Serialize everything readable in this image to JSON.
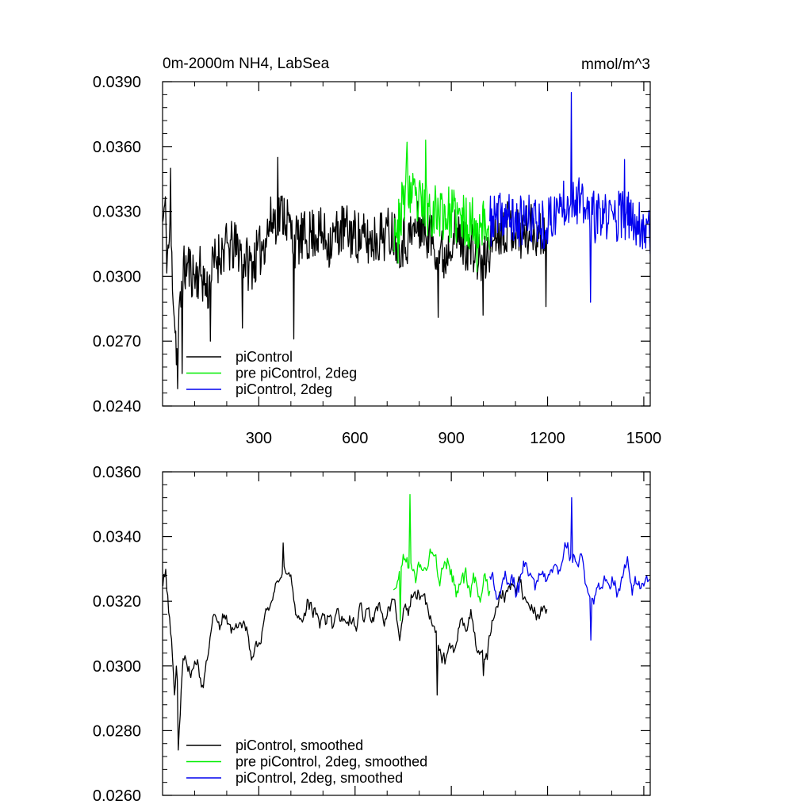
{
  "chart_data": [
    {
      "type": "line",
      "title": "0m-2000m NH4, LabSea",
      "units": "mmol/m^3",
      "xlim": [
        0,
        1520
      ],
      "ylim": [
        0.024,
        0.039
      ],
      "x_ticks": [
        300,
        600,
        900,
        1200,
        1500
      ],
      "x_tick_labels": [
        "300",
        "600",
        "900",
        "1200",
        "1500"
      ],
      "y_ticks": [
        0.024,
        0.027,
        0.03,
        0.033,
        0.036,
        0.039
      ],
      "y_tick_labels": [
        "0.0240",
        "0.0270",
        "0.0300",
        "0.0330",
        "0.0360",
        "0.0390"
      ],
      "legend_position": "bottom-left",
      "series": [
        {
          "name": "piControl",
          "color": "#000000",
          "x_start": 1,
          "x_end": 1200,
          "anchors": [
            [
              1,
              0.0325
            ],
            [
              8,
              0.0332
            ],
            [
              14,
              0.0308
            ],
            [
              22,
              0.0318
            ],
            [
              30,
              0.0305
            ],
            [
              38,
              0.0279
            ],
            [
              46,
              0.0262
            ],
            [
              54,
              0.0284
            ],
            [
              62,
              0.0301
            ],
            [
              80,
              0.0305
            ],
            [
              100,
              0.03
            ],
            [
              120,
              0.0302
            ],
            [
              140,
              0.0293
            ],
            [
              160,
              0.0306
            ],
            [
              180,
              0.0311
            ],
            [
              200,
              0.0313
            ],
            [
              240,
              0.0313
            ],
            [
              270,
              0.0305
            ],
            [
              300,
              0.031
            ],
            [
              340,
              0.0326
            ],
            [
              380,
              0.033
            ],
            [
              410,
              0.0316
            ],
            [
              450,
              0.0318
            ],
            [
              480,
              0.0321
            ],
            [
              520,
              0.0316
            ],
            [
              560,
              0.0322
            ],
            [
              600,
              0.0319
            ],
            [
              640,
              0.0316
            ],
            [
              680,
              0.0319
            ],
            [
              720,
              0.0321
            ],
            [
              740,
              0.0316
            ],
            [
              770,
              0.0318
            ],
            [
              800,
              0.0324
            ],
            [
              830,
              0.032
            ],
            [
              860,
              0.0313
            ],
            [
              880,
              0.0308
            ],
            [
              900,
              0.032
            ],
            [
              940,
              0.0316
            ],
            [
              980,
              0.031
            ],
            [
              1000,
              0.0305
            ],
            [
              1040,
              0.0322
            ],
            [
              1080,
              0.0324
            ],
            [
              1120,
              0.032
            ],
            [
              1160,
              0.0322
            ],
            [
              1200,
              0.0318
            ]
          ],
          "spikes": [
            [
              25,
              0.035
            ],
            [
              48,
              0.0248
            ],
            [
              62,
              0.0255
            ],
            [
              150,
              0.027
            ],
            [
              250,
              0.0276
            ],
            [
              360,
              0.0355
            ],
            [
              410,
              0.0271
            ],
            [
              860,
              0.0281
            ],
            [
              1000,
              0.0282
            ],
            [
              1195,
              0.0286
            ]
          ],
          "amplitude": 0.00125,
          "seed": 11
        },
        {
          "name": "pre piControl, 2deg",
          "color": "#00ee00",
          "x_start": 720,
          "x_end": 1020,
          "anchors": [
            [
              720,
              0.0322
            ],
            [
              745,
              0.033
            ],
            [
              760,
              0.0342
            ],
            [
              790,
              0.0333
            ],
            [
              820,
              0.0332
            ],
            [
              860,
              0.033
            ],
            [
              900,
              0.0328
            ],
            [
              940,
              0.0325
            ],
            [
              980,
              0.0326
            ],
            [
              1020,
              0.0322
            ]
          ],
          "spikes": [
            [
              762,
              0.0362
            ],
            [
              820,
              0.0363
            ],
            [
              735,
              0.0306
            ],
            [
              980,
              0.0302
            ]
          ],
          "amplitude": 0.0013,
          "seed": 23
        },
        {
          "name": "piControl, 2deg",
          "color": "#0000ee",
          "x_start": 1020,
          "x_end": 1520,
          "anchors": [
            [
              1020,
              0.0325
            ],
            [
              1060,
              0.0328
            ],
            [
              1100,
              0.0325
            ],
            [
              1150,
              0.0326
            ],
            [
              1200,
              0.0324
            ],
            [
              1250,
              0.0335
            ],
            [
              1280,
              0.0338
            ],
            [
              1320,
              0.033
            ],
            [
              1360,
              0.0326
            ],
            [
              1400,
              0.0328
            ],
            [
              1440,
              0.0328
            ],
            [
              1480,
              0.0325
            ],
            [
              1520,
              0.0322
            ]
          ],
          "spikes": [
            [
              1275,
              0.0385
            ],
            [
              1335,
              0.0288
            ],
            [
              1440,
              0.0354
            ]
          ],
          "amplitude": 0.0012,
          "seed": 37
        }
      ]
    },
    {
      "type": "line",
      "xlim": [
        0,
        1520
      ],
      "ylim": [
        0.026,
        0.036
      ],
      "x_ticks": [
        300,
        600,
        900,
        1200,
        1500
      ],
      "y_ticks": [
        0.026,
        0.028,
        0.03,
        0.032,
        0.034,
        0.036
      ],
      "y_tick_labels": [
        "0.0260",
        "0.0280",
        "0.0300",
        "0.0320",
        "0.0340",
        "0.0360"
      ],
      "legend_position": "bottom-left",
      "series": [
        {
          "name": "piControl, smoothed",
          "color": "#000000",
          "x_start": 1,
          "x_end": 1200,
          "anchors": [
            [
              1,
              0.0328
            ],
            [
              10,
              0.033
            ],
            [
              20,
              0.0317
            ],
            [
              30,
              0.03
            ],
            [
              38,
              0.0283
            ],
            [
              44,
              0.03
            ],
            [
              50,
              0.0278
            ],
            [
              62,
              0.0298
            ],
            [
              80,
              0.0302
            ],
            [
              100,
              0.03
            ],
            [
              120,
              0.0295
            ],
            [
              140,
              0.03
            ],
            [
              160,
              0.0312
            ],
            [
              200,
              0.0316
            ],
            [
              240,
              0.0313
            ],
            [
              280,
              0.0305
            ],
            [
              320,
              0.0316
            ],
            [
              350,
              0.0325
            ],
            [
              380,
              0.0333
            ],
            [
              420,
              0.0318
            ],
            [
              460,
              0.0316
            ],
            [
              500,
              0.0315
            ],
            [
              540,
              0.0316
            ],
            [
              580,
              0.0314
            ],
            [
              620,
              0.0318
            ],
            [
              660,
              0.0316
            ],
            [
              700,
              0.0318
            ],
            [
              720,
              0.0321
            ],
            [
              740,
              0.0313
            ],
            [
              770,
              0.0317
            ],
            [
              800,
              0.0325
            ],
            [
              830,
              0.0318
            ],
            [
              860,
              0.0305
            ],
            [
              880,
              0.03
            ],
            [
              920,
              0.031
            ],
            [
              960,
              0.0315
            ],
            [
              990,
              0.0305
            ],
            [
              1010,
              0.03
            ],
            [
              1040,
              0.0318
            ],
            [
              1080,
              0.0324
            ],
            [
              1110,
              0.0325
            ],
            [
              1150,
              0.0318
            ],
            [
              1200,
              0.0315
            ]
          ],
          "spikes": [
            [
              50,
              0.0274
            ],
            [
              855,
              0.0291
            ],
            [
              1000,
              0.0297
            ],
            [
              375,
              0.0338
            ]
          ],
          "amplitude": 0.0005,
          "seed": 53
        },
        {
          "name": "pre piControl, 2deg, smoothed",
          "color": "#00ee00",
          "x_start": 720,
          "x_end": 1020,
          "anchors": [
            [
              720,
              0.032
            ],
            [
              735,
              0.0327
            ],
            [
              750,
              0.0334
            ],
            [
              770,
              0.0334
            ],
            [
              790,
              0.033
            ],
            [
              820,
              0.033
            ],
            [
              860,
              0.033
            ],
            [
              900,
              0.0327
            ],
            [
              940,
              0.0326
            ],
            [
              980,
              0.0325
            ],
            [
              1020,
              0.0325
            ]
          ],
          "spikes": [
            [
              770,
              0.0353
            ],
            [
              740,
              0.0314
            ]
          ],
          "amplitude": 0.0006,
          "seed": 67
        },
        {
          "name": "piControl, 2deg, smoothed",
          "color": "#0000ee",
          "x_start": 1020,
          "x_end": 1520,
          "anchors": [
            [
              1020,
              0.0326
            ],
            [
              1060,
              0.0326
            ],
            [
              1100,
              0.0324
            ],
            [
              1150,
              0.033
            ],
            [
              1200,
              0.0328
            ],
            [
              1240,
              0.0335
            ],
            [
              1270,
              0.0338
            ],
            [
              1300,
              0.0333
            ],
            [
              1330,
              0.032
            ],
            [
              1370,
              0.0324
            ],
            [
              1410,
              0.0328
            ],
            [
              1450,
              0.0327
            ],
            [
              1490,
              0.0326
            ],
            [
              1520,
              0.0328
            ]
          ],
          "spikes": [
            [
              1275,
              0.0352
            ],
            [
              1335,
              0.0308
            ],
            [
              1335,
              0.0308
            ]
          ],
          "amplitude": 0.0005,
          "seed": 79
        }
      ]
    }
  ]
}
